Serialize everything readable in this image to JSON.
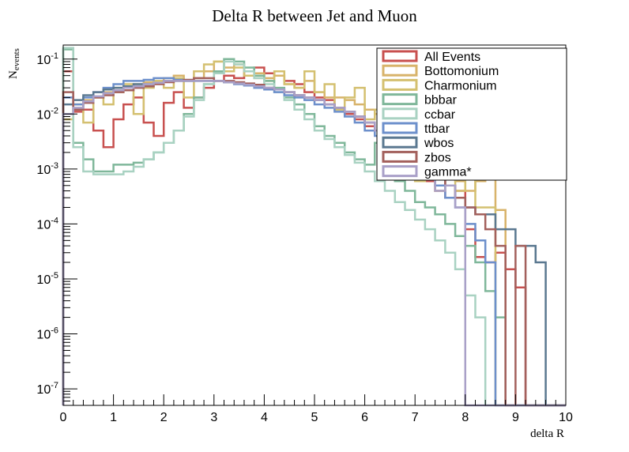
{
  "chart_data": {
    "type": "line",
    "title": "Delta R between Jet and Muon",
    "xlabel": "delta R",
    "ylabel": "N",
    "ylabel_sub": "events",
    "xlim": [
      0,
      10
    ],
    "ylim": [
      5e-08,
      0.18
    ],
    "yscale": "log",
    "grid": false,
    "legend": "top-right",
    "x_ticks": [
      "0",
      "1",
      "2",
      "3",
      "4",
      "5",
      "6",
      "7",
      "8",
      "9",
      "10"
    ],
    "y_ticks": [
      {
        "base": "10",
        "exp": "-7",
        "value": 1e-07
      },
      {
        "base": "10",
        "exp": "-6",
        "value": 1e-06
      },
      {
        "base": "10",
        "exp": "-5",
        "value": 1e-05
      },
      {
        "base": "10",
        "exp": "-4",
        "value": 0.0001
      },
      {
        "base": "10",
        "exp": "-3",
        "value": 0.001
      },
      {
        "base": "10",
        "exp": "-2",
        "value": 0.01
      },
      {
        "base": "10",
        "exp": "-1",
        "value": 0.1
      }
    ],
    "bin_width": 0.2,
    "series": [
      {
        "name": "All Events",
        "color": "#c8504f",
        "values": [
          0.06,
          0.011,
          0.012,
          0.005,
          0.0025,
          0.008,
          0.015,
          0.02,
          0.007,
          0.004,
          0.016,
          0.025,
          0.013,
          0.02,
          0.03,
          0.04,
          0.05,
          0.045,
          0.06,
          0.07,
          0.055,
          0.05,
          0.04,
          0.035,
          0.025,
          0.02,
          0.018,
          0.012,
          0.01,
          0.008,
          0.006,
          0.005,
          0.004,
          0.0025,
          0.0015,
          0.001,
          0.0006,
          0.0004,
          0.0003,
          0.0004,
          8e-05,
          2.5e-05,
          2e-05,
          3e-05,
          1.5e-05,
          7e-06,
          0,
          0,
          0,
          0
        ]
      },
      {
        "name": "Bottomonium",
        "color": "#d8b36a",
        "values": [
          0.01,
          0.015,
          0.018,
          0.02,
          0.025,
          0.03,
          0.032,
          0.035,
          0.038,
          0.04,
          0.045,
          0.05,
          0.04,
          0.045,
          0.06,
          0.09,
          0.07,
          0.08,
          0.06,
          0.055,
          0.045,
          0.05,
          0.035,
          0.03,
          0.04,
          0.025,
          0.02,
          0.02,
          0.018,
          0.015,
          0.012,
          0.01,
          0.008,
          0.006,
          0.004,
          0.003,
          0.0015,
          0.001,
          0.0008,
          0.0006,
          0.0004,
          0.0006,
          0.0008,
          0.00018,
          0,
          0,
          0,
          0,
          0,
          0
        ]
      },
      {
        "name": "Charmonium",
        "color": "#d4c070",
        "values": [
          0.008,
          0.015,
          0.007,
          0.02,
          0.015,
          0.025,
          0.035,
          0.01,
          0.03,
          0.04,
          0.03,
          0.045,
          0.02,
          0.06,
          0.08,
          0.09,
          0.06,
          0.07,
          0.05,
          0.045,
          0.04,
          0.06,
          0.035,
          0.03,
          0.06,
          0.025,
          0.035,
          0.012,
          0.02,
          0.03,
          0.008,
          0.012,
          0.0015,
          0.001,
          0.002,
          0.0006,
          0.0015,
          0.0004,
          0.0015,
          0.0004,
          0.0008,
          0.0002,
          0.0002,
          0,
          0,
          0,
          0,
          0,
          0,
          0
        ]
      },
      {
        "name": "bbbar",
        "color": "#7fb79a",
        "values": [
          0.15,
          0.003,
          0.0015,
          0.0009,
          0.0009,
          0.0012,
          0.0012,
          0.0013,
          0.0015,
          0.002,
          0.003,
          0.005,
          0.01,
          0.02,
          0.035,
          0.06,
          0.1,
          0.09,
          0.07,
          0.05,
          0.04,
          0.03,
          0.02,
          0.015,
          0.01,
          0.006,
          0.004,
          0.003,
          0.002,
          0.0015,
          0.0012,
          0.003,
          0.001,
          0.0006,
          0.0004,
          0.00025,
          0.0002,
          0.00015,
          0.0001,
          6e-05,
          4e-05,
          2e-05,
          6e-06,
          2e-06,
          0,
          0,
          0,
          0,
          0,
          0
        ]
      },
      {
        "name": "ccbar",
        "color": "#a9d2c2",
        "values": [
          0.16,
          0.0025,
          0.0009,
          0.0008,
          0.0008,
          0.0008,
          0.0009,
          0.0011,
          0.0015,
          0.002,
          0.003,
          0.005,
          0.009,
          0.018,
          0.035,
          0.055,
          0.09,
          0.08,
          0.06,
          0.045,
          0.035,
          0.025,
          0.018,
          0.012,
          0.008,
          0.005,
          0.0035,
          0.0025,
          0.0018,
          0.0013,
          0.0009,
          0.0006,
          0.0004,
          0.00025,
          0.00018,
          0.00012,
          8e-05,
          5e-05,
          3e-05,
          1.5e-05,
          5e-06,
          2e-06,
          0,
          0,
          0,
          0,
          0,
          0,
          0,
          0
        ]
      },
      {
        "name": "ttbar",
        "color": "#6c8fcb",
        "values": [
          0.02,
          0.015,
          0.02,
          0.025,
          0.03,
          0.035,
          0.04,
          0.04,
          0.042,
          0.045,
          0.045,
          0.042,
          0.04,
          0.04,
          0.04,
          0.04,
          0.038,
          0.035,
          0.033,
          0.03,
          0.028,
          0.025,
          0.022,
          0.02,
          0.018,
          0.015,
          0.013,
          0.011,
          0.009,
          0.007,
          0.005,
          0.004,
          0.003,
          0.002,
          0.0015,
          0.001,
          0.0007,
          0.0005,
          0.0003,
          0.0002,
          0.0001,
          5e-05,
          2e-05,
          0,
          0,
          0,
          0,
          0,
          0,
          0
        ]
      },
      {
        "name": "wbos",
        "color": "#5a7890",
        "values": [
          0.015,
          0.018,
          0.022,
          0.025,
          0.028,
          0.03,
          0.032,
          0.035,
          0.035,
          0.037,
          0.04,
          0.04,
          0.04,
          0.04,
          0.04,
          0.04,
          0.038,
          0.036,
          0.034,
          0.032,
          0.03,
          0.028,
          0.025,
          0.022,
          0.02,
          0.018,
          0.015,
          0.013,
          0.011,
          0.009,
          0.007,
          0.005,
          0.004,
          0.003,
          0.002,
          0.0015,
          0.001,
          0.0007,
          0.0005,
          0.0003,
          0.0002,
          0.00015,
          0.00015,
          8e-05,
          8e-05,
          4e-05,
          4e-05,
          2e-05,
          0,
          0
        ]
      },
      {
        "name": "zbos",
        "color": "#a3605c",
        "values": [
          0.025,
          0.012,
          0.016,
          0.02,
          0.022,
          0.025,
          0.027,
          0.03,
          0.032,
          0.035,
          0.038,
          0.04,
          0.042,
          0.045,
          0.045,
          0.04,
          0.04,
          0.038,
          0.036,
          0.034,
          0.03,
          0.028,
          0.025,
          0.022,
          0.02,
          0.018,
          0.015,
          0.013,
          0.011,
          0.009,
          0.007,
          0.005,
          0.004,
          0.003,
          0.002,
          0.0015,
          0.001,
          0.0007,
          0.0005,
          0.0003,
          0.0002,
          0.00015,
          8e-05,
          4e-05,
          0,
          4e-05,
          0,
          0,
          0,
          0
        ]
      },
      {
        "name": "gamma*",
        "color": "#a9a0c8",
        "values": [
          0.01,
          0.013,
          0.017,
          0.021,
          0.024,
          0.027,
          0.03,
          0.032,
          0.035,
          0.037,
          0.04,
          0.04,
          0.04,
          0.04,
          0.04,
          0.04,
          0.038,
          0.036,
          0.034,
          0.032,
          0.03,
          0.028,
          0.025,
          0.022,
          0.02,
          0.018,
          0.015,
          0.013,
          0.011,
          0.009,
          0.007,
          0.005,
          0.004,
          0.003,
          0.002,
          0.0015,
          0.001,
          0.0004,
          0.0005,
          0.0002,
          0,
          0,
          0,
          0,
          0,
          0,
          0,
          0,
          0,
          0
        ]
      }
    ]
  }
}
